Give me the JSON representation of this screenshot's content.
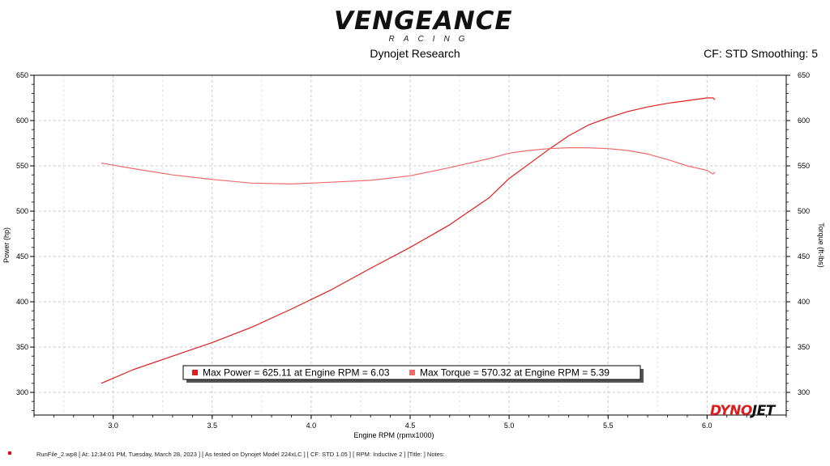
{
  "brand": {
    "name": "VENGEANCE",
    "sub": "RACING"
  },
  "header": {
    "source": "Dynojet Research",
    "cf_info": "CF: STD Smoothing: 5"
  },
  "footer": {
    "text": "RunFile_2.wp8 [ At: 12:34:01 PM, Tuesday, March 28, 2023 ] [ As tested on Dynojet Model 224xLC ] [ CF: STD 1.05 ] [ RPM: Inductive 2 ] [Title: ]  Notes:"
  },
  "dyno_brand": {
    "part1": "DYNO",
    "part2": "JET"
  },
  "colors": {
    "power": "#e01e1e",
    "torque": "#ef6b6b",
    "grid": "#c8c8c8",
    "plot_border": "#000000"
  },
  "chart_data": {
    "type": "line",
    "xlabel": "Engine RPM (rpmx1000)",
    "ylabel_left": "Power (hp)",
    "ylabel_right": "Torque (ft-lbs)",
    "xlim": [
      2.6,
      6.4
    ],
    "ylim": [
      275,
      650
    ],
    "x_ticks": [
      "3.0",
      "3.5",
      "4.0",
      "4.5",
      "5.0",
      "5.5",
      "6.0"
    ],
    "y_ticks": [
      "300",
      "350",
      "400",
      "450",
      "500",
      "550",
      "600",
      "650"
    ],
    "grid": true,
    "series": [
      {
        "name": "Power",
        "x": [
          2.94,
          3.1,
          3.3,
          3.5,
          3.7,
          3.9,
          4.1,
          4.3,
          4.5,
          4.7,
          4.9,
          5.0,
          5.1,
          5.2,
          5.3,
          5.4,
          5.5,
          5.6,
          5.7,
          5.8,
          5.9,
          6.0,
          6.03,
          6.04
        ],
        "y": [
          310,
          325,
          340,
          355,
          372,
          392,
          413,
          437,
          460,
          485,
          515,
          536,
          552,
          568,
          583,
          595,
          603,
          610,
          615,
          619,
          622,
          625,
          625,
          623
        ]
      },
      {
        "name": "Torque",
        "x": [
          2.94,
          3.1,
          3.3,
          3.5,
          3.7,
          3.9,
          4.1,
          4.3,
          4.5,
          4.7,
          4.9,
          5.0,
          5.1,
          5.2,
          5.3,
          5.39,
          5.5,
          5.6,
          5.7,
          5.8,
          5.9,
          6.0,
          6.03,
          6.04
        ],
        "y": [
          553,
          547,
          540,
          535,
          531,
          530,
          532,
          534,
          539,
          548,
          558,
          564,
          567,
          569,
          570,
          570,
          569,
          567,
          563,
          557,
          550,
          545,
          541,
          543
        ]
      }
    ],
    "legend": [
      {
        "label": "Max Power = 625.11 at Engine RPM = 6.03",
        "color": "#e01e1e"
      },
      {
        "label": "Max Torque = 570.32 at Engine RPM = 5.39",
        "color": "#ef6b6b"
      }
    ]
  }
}
